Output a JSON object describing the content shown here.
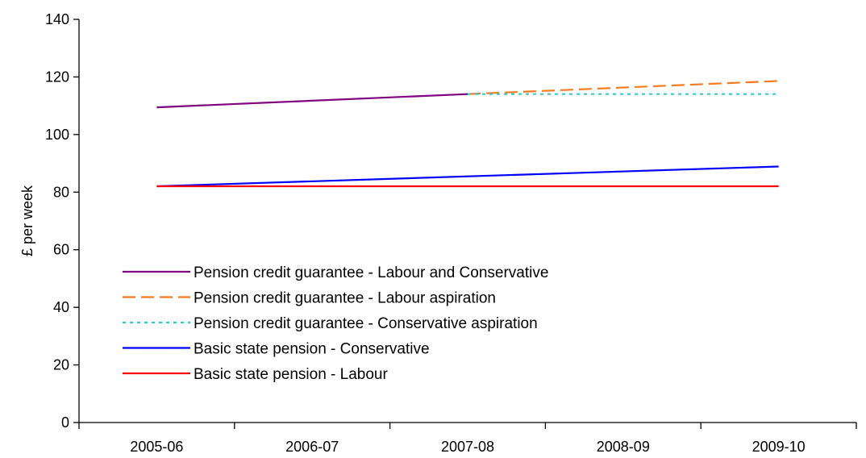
{
  "chart_data": {
    "type": "line",
    "title": "",
    "xlabel": "",
    "ylabel": "£ per week",
    "categories": [
      "2005-06",
      "2006-07",
      "2007-08",
      "2008-09",
      "2009-10"
    ],
    "ylim": [
      0,
      140
    ],
    "yticks": [
      0,
      20,
      40,
      60,
      80,
      100,
      120,
      140
    ],
    "grid": false,
    "legend_position": "left-center",
    "series": [
      {
        "name": "Pension credit guarantee - Labour and Conservative",
        "values": [
          109.45,
          null,
          114.05,
          null,
          null
        ],
        "color": "#800080",
        "dash": "solid"
      },
      {
        "name": "Pension credit guarantee - Labour aspiration",
        "values": [
          null,
          null,
          114.05,
          null,
          118.6
        ],
        "color": "#f47b20",
        "dash": "dashed"
      },
      {
        "name": "Pension credit guarantee - Conservative aspiration",
        "values": [
          null,
          null,
          114.05,
          null,
          114.05
        ],
        "color": "#33cccc",
        "dash": "dotted"
      },
      {
        "name": "Basic state pension - Conservative",
        "values": [
          82.05,
          null,
          null,
          null,
          88.9
        ],
        "color": "#0000ff",
        "dash": "solid"
      },
      {
        "name": "Basic state pension - Labour",
        "values": [
          82.05,
          null,
          null,
          null,
          82.05
        ],
        "color": "#ff0000",
        "dash": "solid"
      }
    ]
  }
}
